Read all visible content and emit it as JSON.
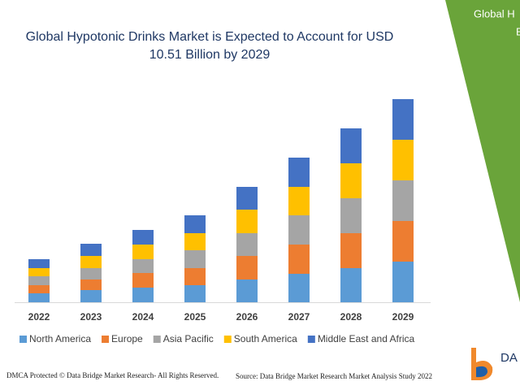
{
  "chart_data": {
    "type": "stacked-bar",
    "title": [
      "Global Hypotonic Drinks Market is Expected to Account for USD",
      "10.51 Billion by 2029"
    ],
    "categories": [
      "2022",
      "2023",
      "2024",
      "2025",
      "2026",
      "2027",
      "2028",
      "2029"
    ],
    "series": [
      {
        "name": "North America",
        "color": "#5b9bd5",
        "values": [
          1.1,
          1.5,
          1.8,
          2.1,
          2.8,
          3.5,
          4.2,
          5.0
        ]
      },
      {
        "name": "Europe",
        "color": "#ed7d31",
        "values": [
          1.0,
          1.3,
          1.8,
          2.1,
          2.9,
          3.6,
          4.3,
          5.0
        ]
      },
      {
        "name": "Asia Pacific",
        "color": "#a5a5a5",
        "values": [
          1.1,
          1.4,
          1.7,
          2.2,
          2.8,
          3.6,
          4.3,
          5.0
        ]
      },
      {
        "name": "South America",
        "color": "#ffc000",
        "values": [
          1.0,
          1.5,
          1.8,
          2.1,
          2.9,
          3.5,
          4.3,
          5.0
        ]
      },
      {
        "name": "Middle East and Africa",
        "color": "#4472c4",
        "values": [
          1.1,
          1.5,
          1.8,
          2.2,
          2.8,
          3.6,
          4.3,
          5.0
        ]
      }
    ],
    "ylim": [
      0,
      26
    ]
  },
  "side_panel": {
    "lines": [
      "Global H",
      "E"
    ]
  },
  "logo": {
    "text": "DA"
  },
  "footer": {
    "left": "DMCA Protected © Data Bridge Market Research- All Rights Reserved.",
    "right": "Source: Data Bridge Market Research Market Analysis Study 2022"
  }
}
